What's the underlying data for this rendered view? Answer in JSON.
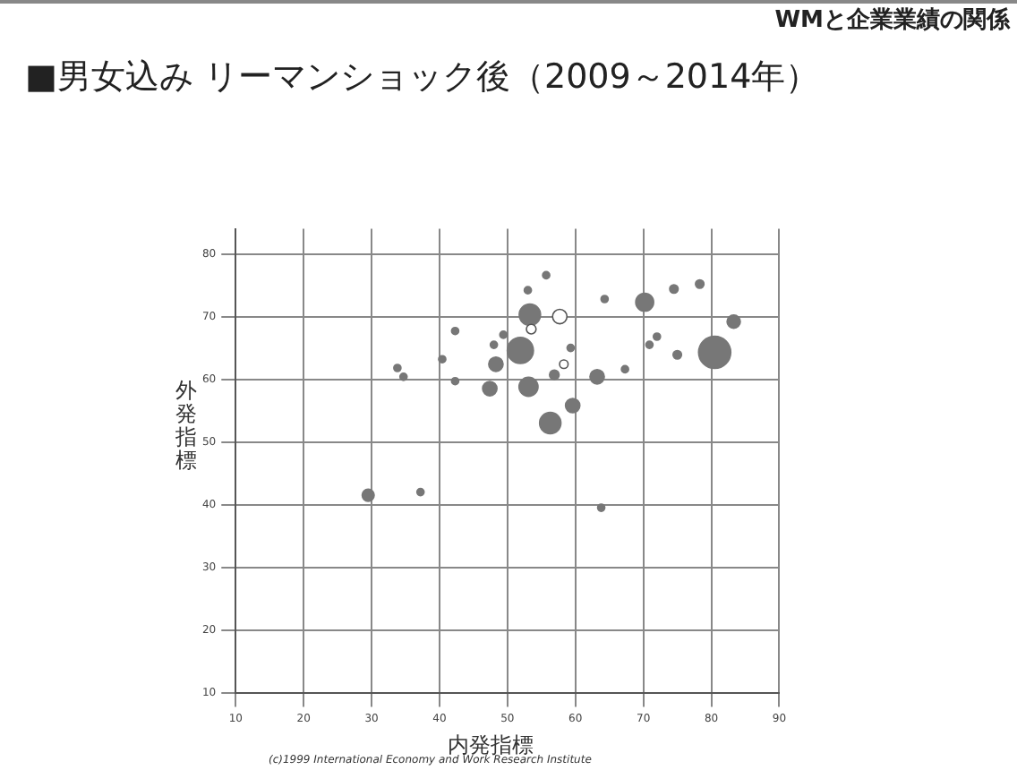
{
  "chart_data": {
    "type": "bubble",
    "title": "■男女込み リーマンショック後（2009～2014年）",
    "xlabel": "内発指標",
    "ylabel": "外発指標",
    "annotations": [
      "WMと企業業績の関係",
      "(c)1999 International Economy and Work Research Institute"
    ],
    "x": [
      55.7,
      53.3,
      57.7,
      51.9,
      48.3,
      47.4,
      53.1,
      56.3,
      59.6,
      63.2,
      56.9,
      58.3,
      59.3,
      53.5,
      70.2,
      74.5,
      78.3,
      83.3,
      80.5,
      75.0,
      72.0,
      70.9,
      67.3,
      64.3,
      49.4,
      48.0,
      42.3,
      40.4,
      63.8,
      37.2,
      29.5,
      33.8,
      34.7,
      42.3,
      53.0
    ],
    "values": [
      76.6,
      70.3,
      70.0,
      64.6,
      62.4,
      58.5,
      58.8,
      53.0,
      55.8,
      60.4,
      60.7,
      62.4,
      65.0,
      68.0,
      72.3,
      74.4,
      75.2,
      69.2,
      64.3,
      63.9,
      66.8,
      65.5,
      61.6,
      72.8,
      67.1,
      65.5,
      59.7,
      63.2,
      39.5,
      42.0,
      41.5,
      61.8,
      60.4,
      67.7,
      74.2
    ],
    "sizes": [
      0.05,
      0.44,
      0.2,
      0.66,
      0.2,
      0.2,
      0.35,
      0.44,
      0.2,
      0.2,
      0.09,
      0.07,
      0.05,
      0.09,
      0.31,
      0.07,
      0.07,
      0.17,
      1,
      0.07,
      0.05,
      0.05,
      0.05,
      0.05,
      0.05,
      0.05,
      0.05,
      0.05,
      0.05,
      0.05,
      0.14,
      0.05,
      0.05,
      0.05,
      0.05
    ],
    "colors": [
      "#777777",
      "#777777",
      "#ffffff",
      "#777777",
      "#777777",
      "#777777",
      "#777777",
      "#777777",
      "#777777",
      "#777777",
      "#777777",
      "#ffffff",
      "#777777",
      "#ffffff",
      "#777777",
      "#777777",
      "#777777",
      "#777777",
      "#777777",
      "#777777",
      "#777777",
      "#777777",
      "#777777",
      "#777777",
      "#777777",
      "#777777",
      "#777777",
      "#777777",
      "#777777",
      "#777777",
      "#777777",
      "#777777",
      "#777777",
      "#777777",
      "#777777"
    ],
    "xlim": [
      10,
      90
    ],
    "xticks": [
      10,
      20,
      30,
      40,
      50,
      60,
      70,
      80,
      90
    ],
    "ylim": [
      10,
      84
    ],
    "yticks": [
      10,
      20,
      30,
      40,
      50,
      60,
      70,
      80
    ],
    "grid": true,
    "legend": false
  }
}
